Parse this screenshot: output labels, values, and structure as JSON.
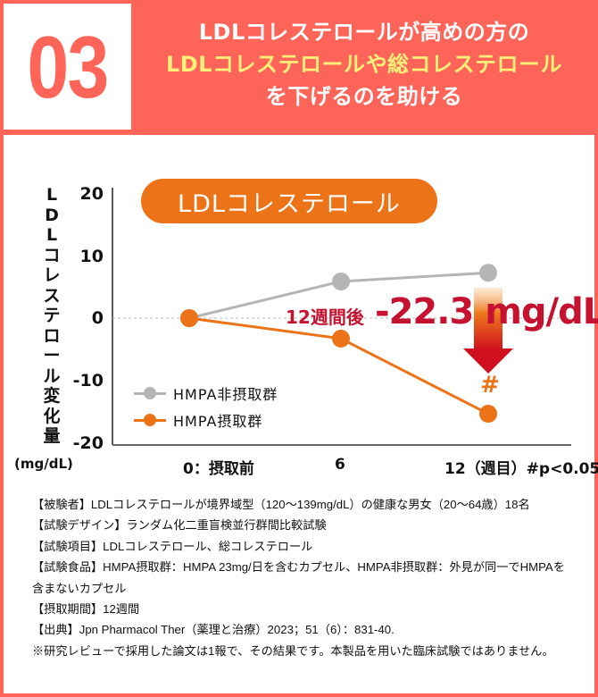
{
  "header": {
    "number": "03",
    "title_line1": "LDLコレステロールが高めの方の",
    "title_line2": "LDLコレステロールや総コレステロール",
    "title_line3": "を下げるのを助ける",
    "colors": {
      "background": "#FF6459",
      "highlight": "#FFF07A",
      "text": "#FFFFFF"
    }
  },
  "chart": {
    "pill_label": "LDLコレステロール",
    "y_axis_label": "LDLコレステロール変化量",
    "y_unit": "(mg/dL)",
    "y_ticks": [
      "20",
      "10",
      "0",
      "-10",
      "-20"
    ],
    "x_labels": [
      "0：摂取前",
      "6",
      "12（週目）#p<0.05"
    ],
    "legend": [
      {
        "label": "HMPA非摂取群",
        "color": "#B5B5B5"
      },
      {
        "label": "HMPA摂取群",
        "color": "#EC7318"
      }
    ],
    "annotation_small": "12週間後",
    "annotation_big": "-22.3 mg/dL",
    "significance_mark": "#"
  },
  "chart_data": {
    "type": "line",
    "title": "LDLコレステロール",
    "xlabel": "週目",
    "ylabel": "LDLコレステロール変化量 (mg/dL)",
    "categories": [
      "0：摂取前",
      "6",
      "12"
    ],
    "x": [
      0,
      6,
      12
    ],
    "ylim": [
      -20,
      20
    ],
    "yticks": [
      20,
      10,
      0,
      -10,
      -20
    ],
    "grid": false,
    "zero_line": "dashed",
    "legend_position": "lower-left",
    "series": [
      {
        "name": "HMPA非摂取群",
        "color": "#B5B5B5",
        "values": [
          0,
          5.9,
          7.3
        ]
      },
      {
        "name": "HMPA摂取群",
        "color": "#EC7318",
        "values": [
          0,
          -3.3,
          -15.4
        ]
      }
    ],
    "annotations": [
      {
        "text": "12週間後 -22.3 mg/dL",
        "x": 12
      },
      {
        "text": "#",
        "x": 12,
        "series": "HMPA摂取群",
        "meaning": "p<0.05"
      }
    ],
    "footnote": "#p<0.05"
  },
  "notes": [
    "【被験者】LDLコレステロールが境界域型（120〜139mg/dL）の健康な男女（20〜64歳）18名",
    "【試験デザイン】ランダム化二重盲検並行群間比較試験",
    "【試験項目】LDLコレステロール、総コレステロール",
    "【試験食品】HMPA摂取群：HMPA 23mg/日を含むカプセル、HMPA非摂取群：外見が同一でHMPAを含まないカプセル",
    "【摂取期間】12週間",
    "【出典】Jpn Pharmacol Ther（薬理と治療）2023；51（6）：831-40.",
    "※研究レビューで採用した論文は1報で、その結果です。本製品を用いた臨床試験ではありません。"
  ]
}
